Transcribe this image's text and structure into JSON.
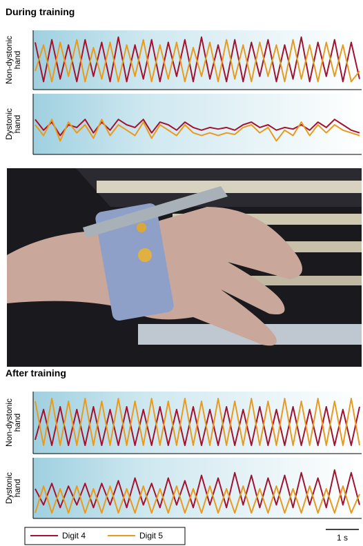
{
  "chart_data": [
    {
      "type": "line",
      "title": "During training",
      "ylabel": [
        "Non-dystonic",
        "hand"
      ],
      "ylim": [
        0,
        1
      ],
      "series": [
        {
          "name": "Digit 4",
          "color": "#a3112e",
          "values": [
            0.85,
            0.1,
            0.9,
            0.15,
            0.8,
            0.1,
            0.9,
            0.2,
            0.85,
            0.1,
            0.95,
            0.1,
            0.8,
            0.15,
            0.9,
            0.1,
            0.85,
            0.2,
            0.9,
            0.1,
            0.95,
            0.15,
            0.8,
            0.1,
            0.9,
            0.1,
            0.85,
            0.2,
            0.9,
            0.1,
            0.8,
            0.15,
            0.95,
            0.1,
            0.85,
            0.2,
            0.9,
            0.1,
            0.85,
            0.15
          ]
        },
        {
          "name": "Digit 5",
          "color": "#e89a1c",
          "values": [
            0.3,
            0.8,
            0.1,
            0.85,
            0.2,
            0.9,
            0.1,
            0.75,
            0.15,
            0.85,
            0.1,
            0.8,
            0.2,
            0.9,
            0.1,
            0.8,
            0.15,
            0.85,
            0.1,
            0.75,
            0.2,
            0.85,
            0.1,
            0.9,
            0.15,
            0.8,
            0.1,
            0.85,
            0.2,
            0.8,
            0.1,
            0.9,
            0.15,
            0.8,
            0.1,
            0.85,
            0.2,
            0.8,
            0.1,
            0.3
          ]
        }
      ]
    },
    {
      "type": "line",
      "ylabel": [
        "Dystonic",
        "hand"
      ],
      "ylim": [
        0,
        1
      ],
      "series": [
        {
          "name": "Digit 4",
          "color": "#a3112e",
          "values": [
            0.6,
            0.4,
            0.55,
            0.3,
            0.5,
            0.45,
            0.6,
            0.35,
            0.55,
            0.4,
            0.6,
            0.5,
            0.45,
            0.6,
            0.35,
            0.55,
            0.5,
            0.4,
            0.55,
            0.45,
            0.4,
            0.45,
            0.42,
            0.45,
            0.4,
            0.5,
            0.55,
            0.45,
            0.5,
            0.4,
            0.45,
            0.42,
            0.5,
            0.4,
            0.55,
            0.45,
            0.6,
            0.5,
            0.4,
            0.35
          ]
        },
        {
          "name": "Digit 5",
          "color": "#e89a1c",
          "values": [
            0.5,
            0.3,
            0.6,
            0.2,
            0.55,
            0.35,
            0.5,
            0.25,
            0.6,
            0.3,
            0.5,
            0.4,
            0.3,
            0.55,
            0.25,
            0.5,
            0.4,
            0.3,
            0.5,
            0.35,
            0.3,
            0.35,
            0.3,
            0.35,
            0.32,
            0.45,
            0.5,
            0.35,
            0.45,
            0.2,
            0.4,
            0.3,
            0.55,
            0.3,
            0.5,
            0.35,
            0.5,
            0.4,
            0.35,
            0.3
          ]
        }
      ]
    },
    {
      "type": "line",
      "title": "After training",
      "ylabel": [
        "Non-dystonic",
        "hand"
      ],
      "ylim": [
        0,
        1
      ],
      "series": [
        {
          "name": "Digit 4",
          "color": "#a3112e",
          "values": [
            0.2,
            0.75,
            0.1,
            0.8,
            0.1,
            0.75,
            0.1,
            0.8,
            0.1,
            0.75,
            0.1,
            0.8,
            0.1,
            0.75,
            0.1,
            0.8,
            0.1,
            0.75,
            0.1,
            0.8,
            0.1,
            0.75,
            0.1,
            0.8,
            0.1,
            0.75,
            0.1,
            0.8,
            0.1,
            0.75,
            0.1,
            0.8,
            0.1,
            0.75,
            0.1,
            0.8,
            0.1,
            0.75,
            0.1,
            0.8
          ]
        },
        {
          "name": "Digit 5",
          "color": "#e89a1c",
          "values": [
            0.9,
            0.1,
            0.95,
            0.1,
            0.9,
            0.1,
            0.95,
            0.1,
            0.9,
            0.1,
            0.95,
            0.1,
            0.9,
            0.1,
            0.95,
            0.1,
            0.9,
            0.1,
            0.95,
            0.1,
            0.9,
            0.1,
            0.95,
            0.1,
            0.9,
            0.1,
            0.95,
            0.1,
            0.9,
            0.1,
            0.95,
            0.1,
            0.9,
            0.1,
            0.95,
            0.1,
            0.9,
            0.1,
            0.95,
            0.1
          ]
        }
      ]
    },
    {
      "type": "line",
      "ylabel": [
        "Dystonic",
        "hand"
      ],
      "ylim": [
        0,
        1
      ],
      "series": [
        {
          "name": "Digit 4",
          "color": "#a3112e",
          "values": [
            0.5,
            0.2,
            0.6,
            0.15,
            0.55,
            0.2,
            0.6,
            0.15,
            0.6,
            0.2,
            0.65,
            0.15,
            0.7,
            0.2,
            0.6,
            0.15,
            0.7,
            0.2,
            0.65,
            0.15,
            0.75,
            0.2,
            0.7,
            0.15,
            0.8,
            0.2,
            0.75,
            0.15,
            0.7,
            0.2,
            0.75,
            0.15,
            0.8,
            0.2,
            0.7,
            0.15,
            0.85,
            0.2,
            0.8,
            0.2
          ]
        },
        {
          "name": "Digit 5",
          "color": "#e89a1c",
          "values": [
            0.05,
            0.55,
            0.05,
            0.5,
            0.05,
            0.55,
            0.05,
            0.5,
            0.05,
            0.55,
            0.05,
            0.5,
            0.05,
            0.55,
            0.05,
            0.5,
            0.05,
            0.55,
            0.05,
            0.5,
            0.05,
            0.55,
            0.05,
            0.5,
            0.05,
            0.55,
            0.05,
            0.5,
            0.05,
            0.55,
            0.05,
            0.5,
            0.05,
            0.55,
            0.05,
            0.5,
            0.05,
            0.55,
            0.05,
            0.4
          ]
        }
      ]
    }
  ],
  "scale_bar_label": "1 s"
}
